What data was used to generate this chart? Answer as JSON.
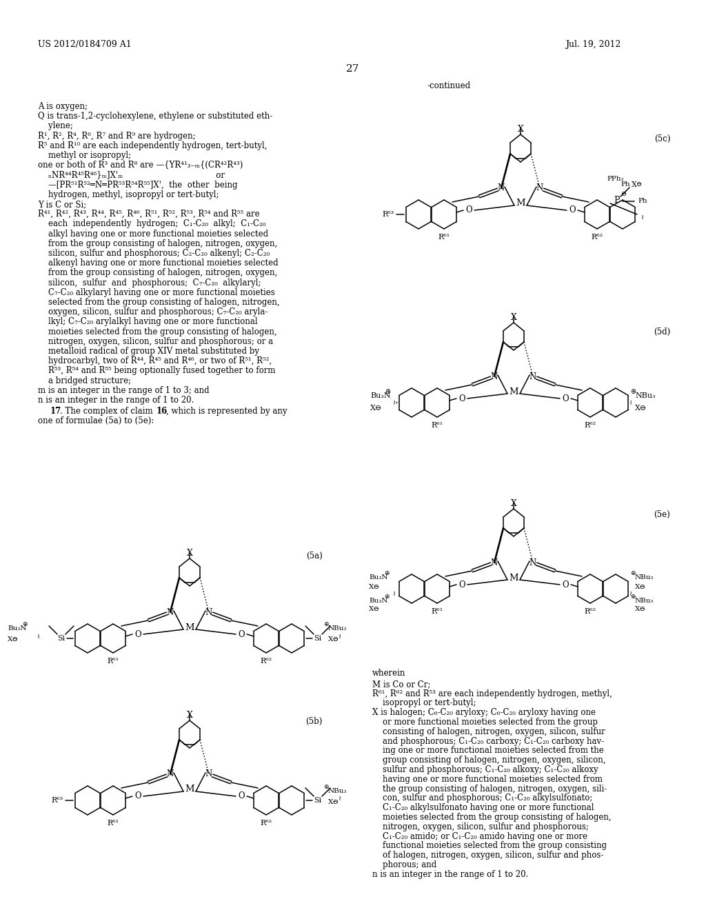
{
  "patent_number": "US 2012/0184709 A1",
  "patent_date": "Jul. 19, 2012",
  "page_number": "27",
  "bg_color": "#ffffff"
}
